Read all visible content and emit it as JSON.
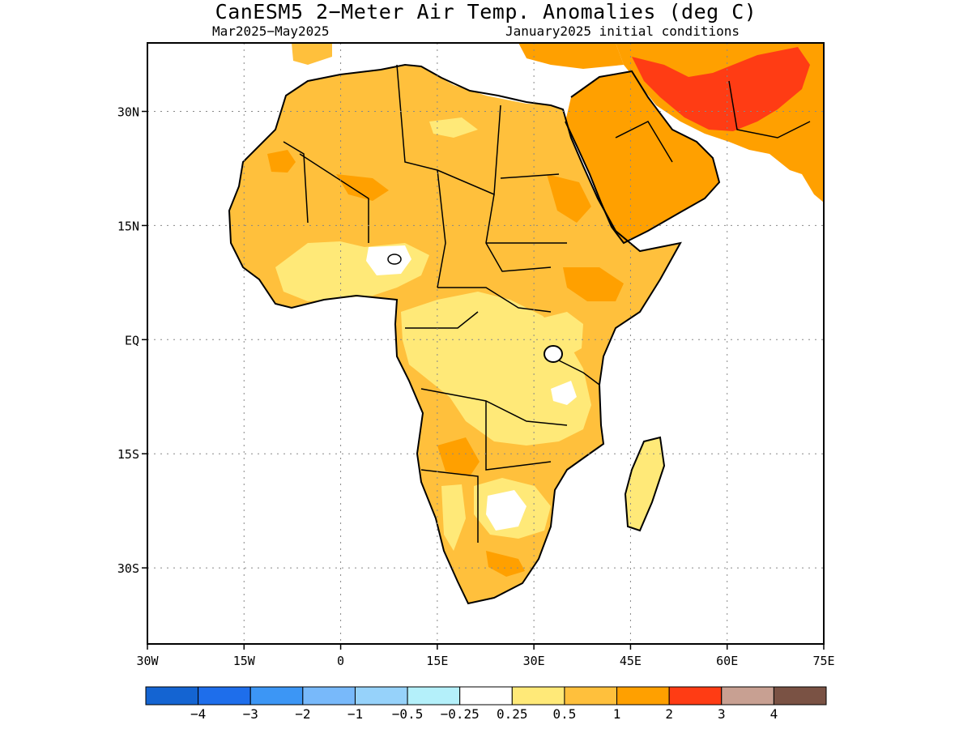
{
  "title": "CanESM5 2−Meter Air Temp. Anomalies (deg C)",
  "subtitle_left": "Mar2025−May2025",
  "subtitle_right": "January2025 initial conditions",
  "map": {
    "lon_range": [
      -30,
      75
    ],
    "lat_range": [
      -40,
      39
    ],
    "lat_ticks": [
      {
        "value": 30,
        "label": "30N"
      },
      {
        "value": 15,
        "label": "15N"
      },
      {
        "value": 0,
        "label": "EQ"
      },
      {
        "value": -15,
        "label": "15S"
      },
      {
        "value": -30,
        "label": "30S"
      }
    ],
    "lon_ticks": [
      {
        "value": -30,
        "label": "30W"
      },
      {
        "value": -15,
        "label": "15W"
      },
      {
        "value": 0,
        "label": "0"
      },
      {
        "value": 15,
        "label": "15E"
      },
      {
        "value": 30,
        "label": "30E"
      },
      {
        "value": 45,
        "label": "45E"
      },
      {
        "value": 60,
        "label": "60E"
      },
      {
        "value": 75,
        "label": "75E"
      }
    ],
    "grid": "dotted"
  },
  "colorbar": {
    "colors": [
      "#1464d2",
      "#1e6eeb",
      "#3c96f5",
      "#78b9fa",
      "#96d2fa",
      "#b4f0fa",
      "#ffffff",
      "#ffe978",
      "#ffc03c",
      "#ffa000",
      "#ff3c14",
      "#c8a092",
      "#7a5244"
    ],
    "labels": [
      "−4",
      "−3",
      "−2",
      "−1",
      "−0.5",
      "−0.25",
      "0.25",
      "0.5",
      "1",
      "2",
      "3",
      "4"
    ]
  }
}
